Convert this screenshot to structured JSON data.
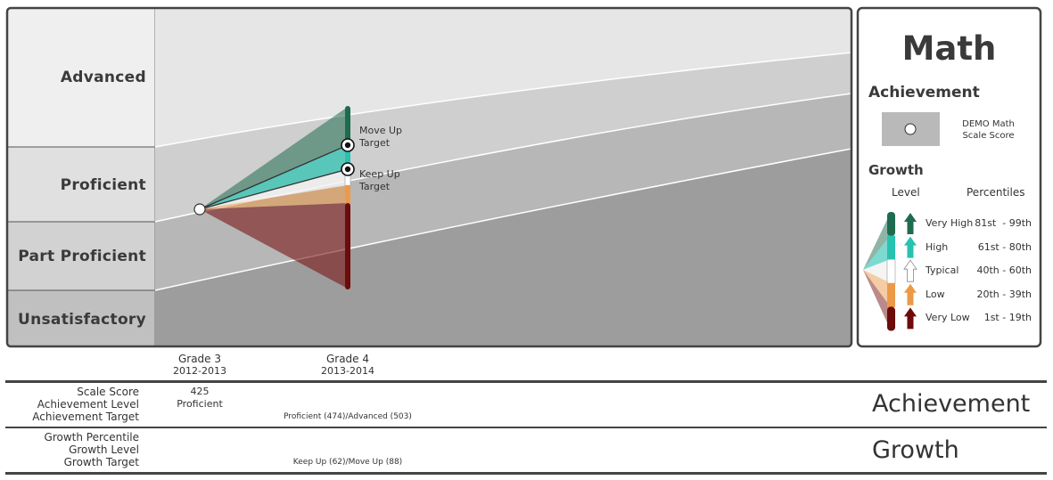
{
  "chart_data": {
    "type": "area",
    "subject": "Math",
    "levels": [
      "Advanced",
      "Proficient",
      "Part Proficient",
      "Unsatisfactory"
    ],
    "grades": [
      {
        "label": "Grade 3",
        "year": "2012-2013"
      },
      {
        "label": "Grade 4",
        "year": "2013-2014"
      }
    ],
    "student_score": {
      "grade": "Grade 3",
      "scale_score": "425",
      "achievement_level": "Proficient"
    },
    "growth_bands": [
      "Very High",
      "High",
      "Typical",
      "Low",
      "Very Low"
    ],
    "targets": [
      {
        "label_line1": "Move Up",
        "label_line2": "Target"
      },
      {
        "label_line1": "Keep Up",
        "label_line2": "Target"
      }
    ]
  },
  "legend": {
    "title": "Math",
    "achievement_heading": "Achievement",
    "score_label_line1": "DEMO Math",
    "score_label_line2": "Scale Score",
    "growth_heading": "Growth",
    "col_level": "Level",
    "col_percentiles": "Percentiles",
    "rows": [
      {
        "level": "Very High",
        "range": "81st  - 99th",
        "color": "#1f6b4f"
      },
      {
        "level": "High",
        "range": "61st - 80th",
        "color": "#27c2b0"
      },
      {
        "level": "Typical",
        "range": "40th - 60th",
        "color": "#ffffff"
      },
      {
        "level": "Low",
        "range": "20th - 39th",
        "color": "#ec9a48"
      },
      {
        "level": "Very Low",
        "range": "1st - 19th",
        "color": "#6e0b0b"
      }
    ]
  },
  "table": {
    "achievement": {
      "section": "Achievement",
      "rows": [
        {
          "label": "Scale Score",
          "grade3": "425",
          "grade4": ""
        },
        {
          "label": "Achievement Level",
          "grade3": "Proficient",
          "grade4": ""
        },
        {
          "label": "Achievement Target",
          "grade3": "",
          "grade4": "Proficient (474)/Advanced (503)"
        }
      ]
    },
    "growth": {
      "section": "Growth",
      "rows": [
        {
          "label": "Growth Percentile",
          "grade3": "",
          "grade4": ""
        },
        {
          "label": "Growth Level",
          "grade3": "",
          "grade4": ""
        },
        {
          "label": "Growth Target",
          "grade3": "",
          "grade4": "Keep Up (62)/Move Up (88)"
        }
      ]
    }
  },
  "colors": {
    "very_high": "#1f6b4f",
    "high": "#27c2b0",
    "typical": "#ffffff",
    "low": "#ec9a48",
    "very_low": "#6e0b0b"
  }
}
